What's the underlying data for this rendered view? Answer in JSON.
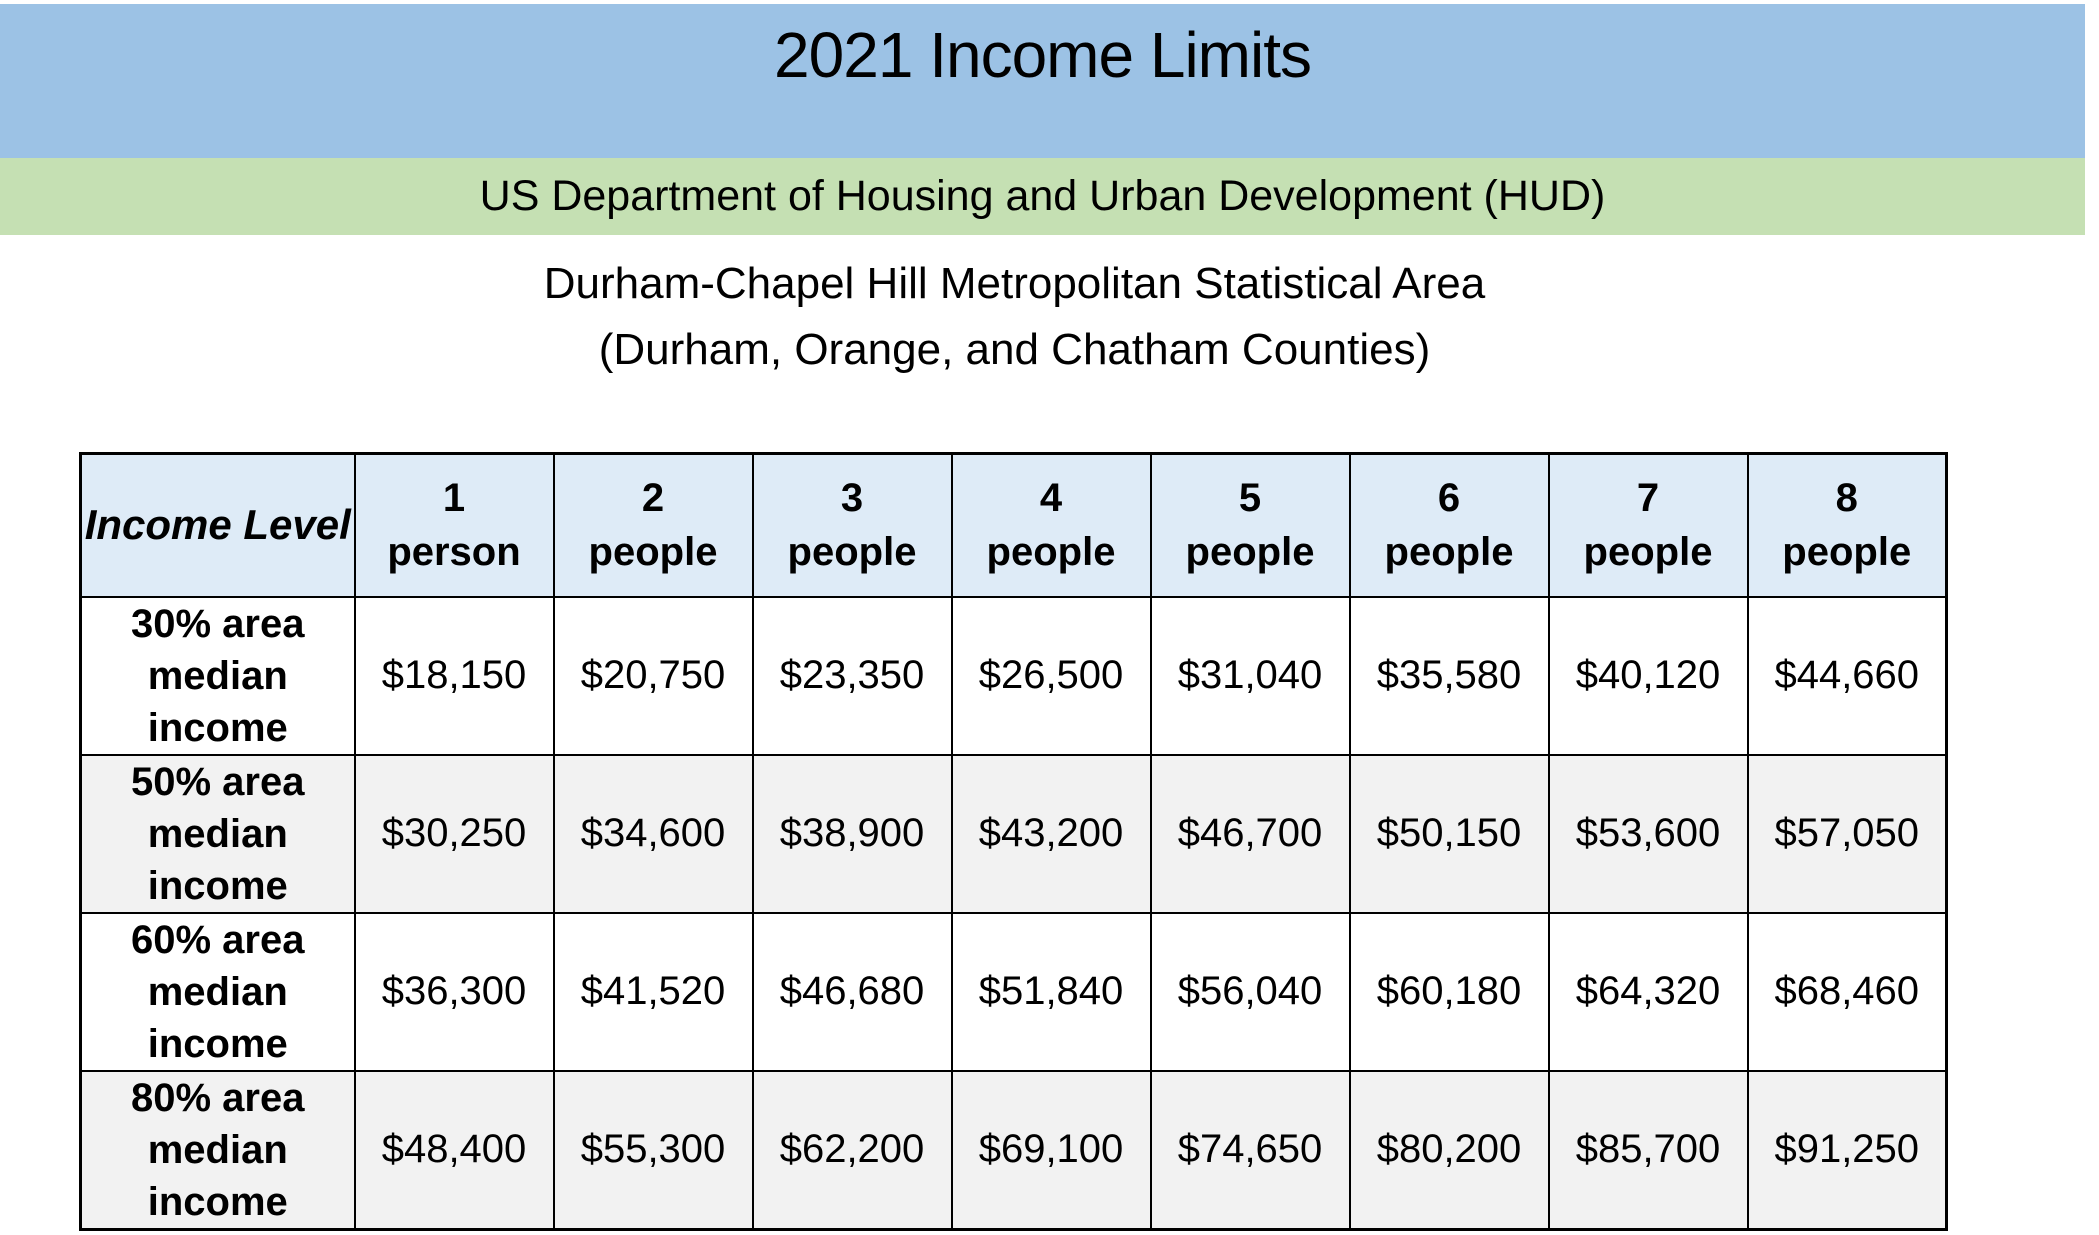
{
  "banner": {
    "title": "2021 Income Limits",
    "subtitle": "US Department of Housing and Urban Development (HUD)"
  },
  "area": {
    "line1": "Durham-Chapel Hill Metropolitan Statistical Area",
    "line2": "(Durham, Orange, and Chatham Counties)"
  },
  "table": {
    "header": {
      "income_level": "Income Level",
      "columns": [
        {
          "number": "1",
          "label": "person"
        },
        {
          "number": "2",
          "label": "people"
        },
        {
          "number": "3",
          "label": "people"
        },
        {
          "number": "4",
          "label": "people"
        },
        {
          "number": "5",
          "label": "people"
        },
        {
          "number": "6",
          "label": "people"
        },
        {
          "number": "7",
          "label": "people"
        },
        {
          "number": "8",
          "label": "people"
        }
      ]
    },
    "rows": [
      {
        "label_lines": [
          "30% area",
          "median",
          "income"
        ],
        "values": [
          "$18,150",
          "$20,750",
          "$23,350",
          "$26,500",
          "$31,040",
          "$35,580",
          "$40,120",
          "$44,660"
        ]
      },
      {
        "label_lines": [
          "50% area",
          "median",
          "income"
        ],
        "values": [
          "$30,250",
          "$34,600",
          "$38,900",
          "$43,200",
          "$46,700",
          "$50,150",
          "$53,600",
          "$57,050"
        ]
      },
      {
        "label_lines": [
          "60% area",
          "median",
          "income"
        ],
        "values": [
          "$36,300",
          "$41,520",
          "$46,680",
          "$51,840",
          "$56,040",
          "$60,180",
          "$64,320",
          "$68,460"
        ]
      },
      {
        "label_lines": [
          "80% area",
          "median",
          "income"
        ],
        "values": [
          "$48,400",
          "$55,300",
          "$62,200",
          "$69,100",
          "$74,650",
          "$80,200",
          "$85,700",
          "$91,250"
        ]
      }
    ]
  },
  "colors": {
    "banner_blue": "#9CC2E5",
    "banner_green": "#C5E0B3",
    "header_cell_blue": "#DEEBF7",
    "row_shaded_gray": "#F2F2F2",
    "border": "#000000",
    "text": "#000000"
  }
}
